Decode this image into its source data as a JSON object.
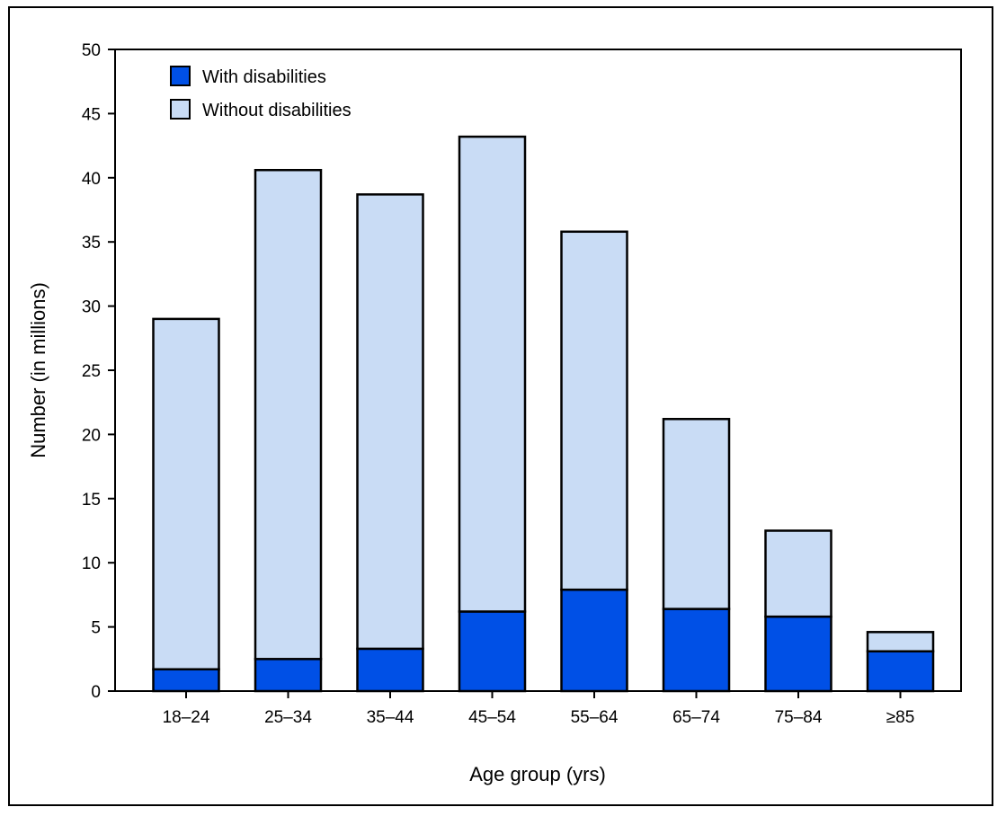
{
  "chart_data": {
    "type": "bar",
    "stacked": true,
    "categories": [
      "18–24",
      "25–34",
      "35–44",
      "45–54",
      "55–64",
      "65–74",
      "75–84",
      "≥85"
    ],
    "series": [
      {
        "name": "With disabilities",
        "values": [
          1.7,
          2.5,
          3.3,
          6.2,
          7.9,
          6.4,
          5.8,
          3.1
        ],
        "color": "#0050e6"
      },
      {
        "name": "Without disabilities",
        "values": [
          27.3,
          38.1,
          35.4,
          37.0,
          27.9,
          14.8,
          6.7,
          1.5
        ],
        "color": "#c9dcf5"
      }
    ],
    "xlabel": "Age group (yrs)",
    "ylabel": "Number (in millions)",
    "ylim": [
      0,
      50
    ],
    "yticks": [
      0,
      5,
      10,
      15,
      20,
      25,
      30,
      35,
      40,
      45,
      50
    ],
    "grid": false,
    "legend_position": "top-left"
  }
}
